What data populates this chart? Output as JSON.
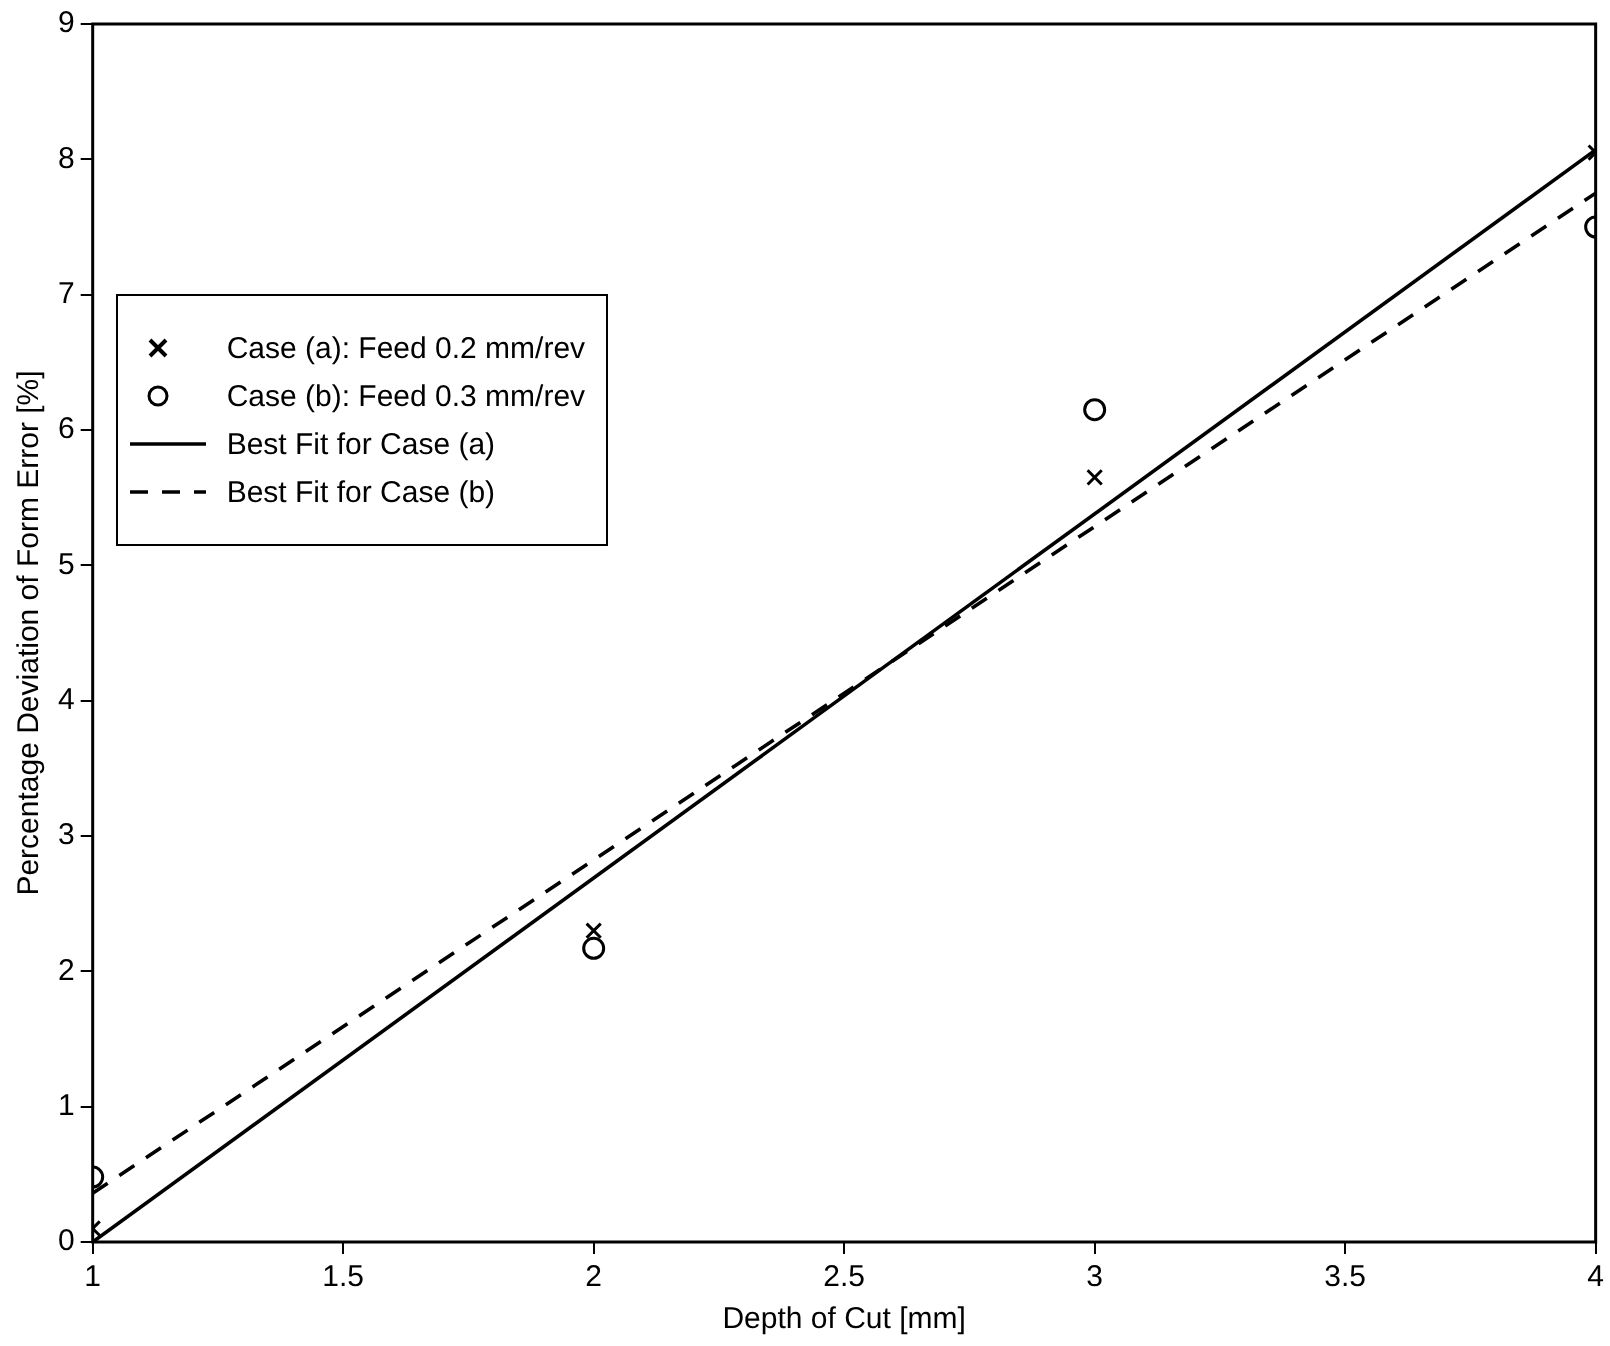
{
  "chart_data": {
    "type": "scatter",
    "xlabel": "Depth of Cut [mm]",
    "ylabel": "Percentage Deviation of Form Error [%]",
    "xlim": [
      1,
      4
    ],
    "xticks": [
      1,
      1.5,
      2,
      2.5,
      3,
      3.5,
      4
    ],
    "ylim": [
      0,
      9
    ],
    "yticks": [
      0,
      1,
      2,
      3,
      4,
      5,
      6,
      7,
      8,
      9
    ],
    "grid": false,
    "legend": "left",
    "series": [
      {
        "name": "Case (a): Feed 0.2 mm/rev",
        "marker": "cross",
        "color": "#000000",
        "x": [
          1,
          2,
          3,
          4
        ],
        "values": [
          0.1,
          2.3,
          5.65,
          8.05
        ]
      },
      {
        "name": "Case (b): Feed 0.3 mm/rev",
        "marker": "circle",
        "color": "#000000",
        "x": [
          1,
          2,
          3,
          4
        ],
        "values": [
          0.48,
          2.17,
          6.15,
          7.5
        ]
      },
      {
        "name": "Best Fit for Case (a)",
        "type": "line",
        "marker": "none",
        "line_style": "solid",
        "color": "#000000",
        "x": [
          1,
          4
        ],
        "values": [
          0,
          8.07
        ]
      },
      {
        "name": "Best Fit for Case (b)",
        "type": "line",
        "marker": "none",
        "line_style": "dashed",
        "color": "#000000",
        "x": [
          1,
          4
        ],
        "values": [
          0.36,
          7.75
        ]
      }
    ]
  }
}
